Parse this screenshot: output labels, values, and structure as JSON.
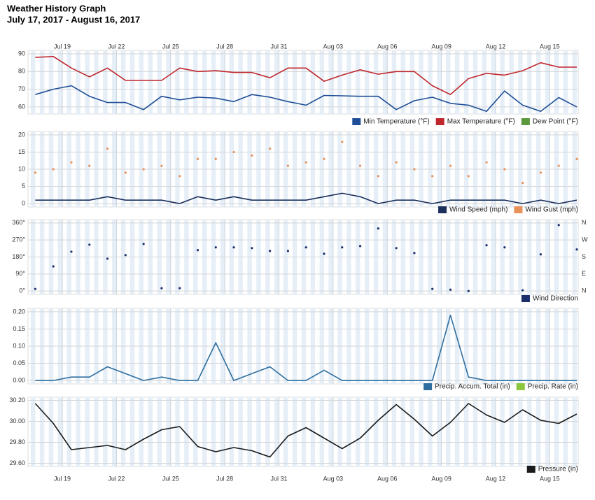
{
  "title": "Weather History Graph",
  "subtitle": "July 17, 2017 - August 16, 2017",
  "chart_data": [
    {
      "type": "line",
      "legend": "bottom-right",
      "grid": true,
      "categories": [
        null,
        null,
        "Jul 19",
        null,
        null,
        "Jul 22",
        null,
        null,
        "Jul 25",
        null,
        null,
        "Jul 28",
        null,
        null,
        "Jul 31",
        null,
        null,
        "Aug 03",
        null,
        null,
        "Aug 06",
        null,
        null,
        "Aug 09",
        null,
        null,
        "Aug 12",
        null,
        null,
        "Aug 15",
        null
      ],
      "ylim": [
        56,
        92
      ],
      "yticks": [
        60,
        70,
        80,
        90
      ],
      "series": [
        {
          "name": "Min Temperature (°F)",
          "color": "#1f4e96",
          "values": [
            67,
            70,
            72,
            66,
            62.5,
            62.5,
            58.5,
            66,
            64,
            65.5,
            65,
            63,
            67,
            65.5,
            63,
            61,
            66.5,
            66.3,
            66,
            66,
            58.5,
            63.5,
            65.5,
            62,
            61,
            57.5,
            69,
            61,
            57.5,
            65.3,
            60
          ]
        },
        {
          "name": "Max Temperature (°F)",
          "color": "#c0272d",
          "values": [
            88,
            88.5,
            82,
            77,
            82,
            75,
            75,
            75,
            82,
            80,
            80.5,
            79.5,
            79.5,
            76.5,
            82,
            82,
            74.5,
            78,
            81,
            78.5,
            80,
            80,
            72,
            67,
            76,
            79,
            78,
            80.5,
            85,
            82.5,
            82.5
          ]
        },
        {
          "name": "Dew Point (°F)",
          "color": "#5a9a3c",
          "values": [
            null,
            null,
            null,
            null,
            null,
            null,
            null,
            null,
            null,
            null,
            null,
            null,
            null,
            null,
            null,
            null,
            null,
            null,
            null,
            null,
            null,
            null,
            null,
            null,
            null,
            null,
            null,
            null,
            null,
            null,
            null
          ]
        }
      ]
    },
    {
      "type": "line",
      "legend": "bottom-right",
      "grid": true,
      "ylim": [
        -1,
        21
      ],
      "yticks": [
        0,
        5,
        10,
        15,
        20
      ],
      "series": [
        {
          "name": "Wind Speed (mph)",
          "color": "#1a2f5c",
          "type": "line",
          "values": [
            1,
            1,
            1,
            1,
            2,
            1,
            1,
            1,
            0,
            2,
            1,
            2,
            1,
            1,
            1,
            1,
            2,
            3,
            2,
            0,
            1,
            1,
            0,
            1,
            1,
            1,
            1,
            0,
            1,
            0,
            1
          ]
        },
        {
          "name": "Wind Gust (mph)",
          "color": "#e8915a",
          "type": "scatter",
          "values": [
            9,
            10,
            12,
            11,
            16,
            9,
            10,
            11,
            8,
            13,
            13,
            15,
            14,
            16,
            11,
            12,
            13,
            18,
            11,
            8,
            12,
            10,
            8,
            11,
            8,
            12,
            10,
            6,
            9,
            11,
            13
          ]
        }
      ]
    },
    {
      "type": "scatter",
      "legend": "bottom-right",
      "grid": true,
      "ylim": [
        -18,
        378
      ],
      "yticks": [
        {
          "value": 0,
          "label": "0°"
        },
        {
          "value": 90,
          "label": "90°"
        },
        {
          "value": 180,
          "label": "180°"
        },
        {
          "value": 270,
          "label": "270°"
        },
        {
          "value": 360,
          "label": "360°"
        }
      ],
      "y2lim": [
        -18,
        378
      ],
      "y2ticks": [
        {
          "value": 0,
          "label": "N"
        },
        {
          "value": 90,
          "label": "E"
        },
        {
          "value": 180,
          "label": "S"
        },
        {
          "value": 270,
          "label": "W"
        },
        {
          "value": 360,
          "label": "N"
        }
      ],
      "series": [
        {
          "name": "Wind Direction",
          "color": "#1a2f6b",
          "values": [
            11,
            130,
            208,
            245,
            171,
            190,
            249,
            15,
            15,
            216,
            231,
            231,
            227,
            212,
            212,
            231,
            197,
            231,
            238,
            331,
            227,
            201,
            11,
            7,
            0,
            242,
            231,
            4,
            194,
            349,
            220
          ]
        }
      ]
    },
    {
      "type": "line",
      "legend": "bottom-right",
      "grid": true,
      "ylim": [
        -0.01,
        0.21
      ],
      "yticks": [
        {
          "value": 0,
          "label": "0.00"
        },
        {
          "value": 0.05,
          "label": "0.05"
        },
        {
          "value": 0.1,
          "label": "0.10"
        },
        {
          "value": 0.15,
          "label": "0.15"
        },
        {
          "value": 0.2,
          "label": "0.20"
        }
      ],
      "series": [
        {
          "name": "Precip. Accum. Total (in)",
          "color": "#2e6e9e",
          "values": [
            0,
            0,
            0.01,
            0.01,
            0.04,
            0.02,
            0,
            0.01,
            0,
            0,
            0.11,
            0,
            0.02,
            0.04,
            0,
            0,
            0.03,
            0,
            0,
            0,
            0,
            0,
            0,
            0.19,
            0.01,
            0,
            0,
            0,
            0,
            0,
            0
          ]
        },
        {
          "name": "Precip. Rate (in)",
          "color": "#8cc63f",
          "values": [
            null,
            null,
            null,
            null,
            null,
            null,
            null,
            null,
            null,
            null,
            null,
            null,
            null,
            null,
            null,
            null,
            null,
            null,
            null,
            null,
            null,
            null,
            null,
            null,
            null,
            null,
            null,
            null,
            null,
            null,
            null
          ]
        }
      ]
    },
    {
      "type": "line",
      "legend": "bottom-right",
      "grid": true,
      "categories": [
        null,
        null,
        "Jul 19",
        null,
        null,
        "Jul 22",
        null,
        null,
        "Jul 25",
        null,
        null,
        "Jul 28",
        null,
        null,
        "Jul 31",
        null,
        null,
        "Aug 03",
        null,
        null,
        "Aug 06",
        null,
        null,
        "Aug 09",
        null,
        null,
        "Aug 12",
        null,
        null,
        "Aug 15",
        null
      ],
      "ylim": [
        29.57,
        30.23
      ],
      "yticks": [
        {
          "value": 29.6,
          "label": "29.60"
        },
        {
          "value": 29.8,
          "label": "29.80"
        },
        {
          "value": 30,
          "label": "30.00"
        },
        {
          "value": 30.2,
          "label": "30.20"
        }
      ],
      "series": [
        {
          "name": "Pressure (in)",
          "color": "#1a1a1a",
          "values": [
            30.17,
            29.98,
            29.73,
            29.75,
            29.77,
            29.73,
            29.83,
            29.92,
            29.95,
            29.76,
            29.71,
            29.75,
            29.72,
            29.66,
            29.86,
            29.94,
            29.84,
            29.74,
            29.84,
            30.01,
            30.16,
            30.02,
            29.86,
            29.99,
            30.17,
            30.06,
            29.99,
            30.11,
            30.01,
            29.98,
            30.07
          ]
        }
      ]
    }
  ]
}
